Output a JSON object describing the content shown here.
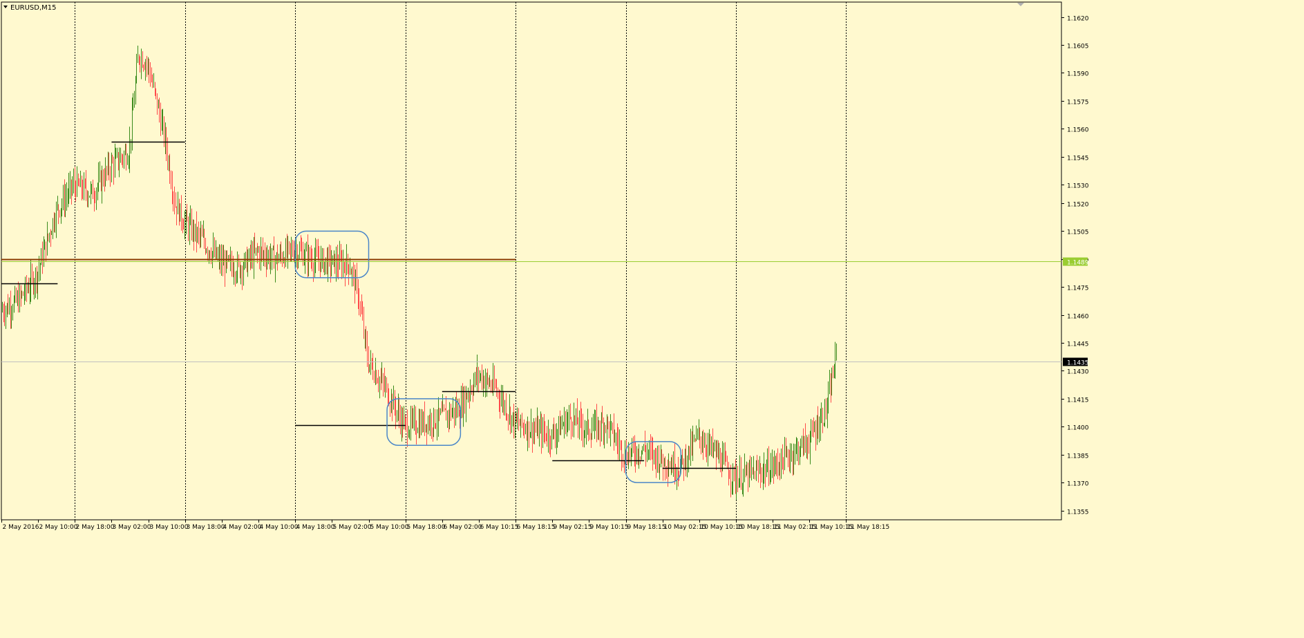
{
  "window": {
    "symbol_title": "EURUSD,M15",
    "title_icon": "triangle-down-icon"
  },
  "colors": {
    "background": "#fff9cf",
    "axis": "#000000",
    "bull": "#3a8a1a",
    "bear": "#ff4a4a",
    "level_line": "#000000",
    "pivot_line": "#8a3a00",
    "bid_line": "#9acd32",
    "ask_line": "#c0c0c0",
    "box": "#4a86c8"
  },
  "price_labels": {
    "bid": "1.1489",
    "current": "1.1435"
  },
  "chart_data": {
    "type": "candlestick",
    "title": "EURUSD,M15",
    "xlabel": "",
    "ylabel": "",
    "ylim": [
      1.135,
      1.1628
    ],
    "y_ticks": [
      "1.1620",
      "1.1605",
      "1.1590",
      "1.1575",
      "1.1560",
      "1.1545",
      "1.1530",
      "1.1520",
      "1.1505",
      "1.1490",
      "1.1475",
      "1.1460",
      "1.1445",
      "1.1430",
      "1.1415",
      "1.1400",
      "1.1385",
      "1.1370",
      "1.1355"
    ],
    "x_ticks": [
      "2 May 2016",
      "2 May 10:00",
      "2 May 18:00",
      "3 May 02:00",
      "3 May 10:00",
      "3 May 18:00",
      "4 May 02:00",
      "4 May 10:00",
      "4 May 18:00",
      "5 May 02:00",
      "5 May 10:00",
      "5 May 18:00",
      "6 May 02:00",
      "6 May 10:15",
      "6 May 18:15",
      "9 May 02:15",
      "9 May 10:15",
      "9 May 18:15",
      "10 May 02:15",
      "10 May 10:15",
      "10 May 18:15",
      "11 May 02:15",
      "11 May 10:15",
      "11 May 18:15"
    ],
    "x_span": [
      "2 May 2016",
      "11 May 18:15 + 8 bars"
    ],
    "day_separators": [
      "2 May 18:00",
      "3 May 18:00",
      "4 May 18:00",
      "5 May 18:00",
      "6 May 18:15",
      "9 May 18:15",
      "10 May 18:15",
      "11 May 18:15"
    ],
    "grid": false,
    "price_path": [
      {
        "t": "2 May 2016",
        "p": 1.1462
      },
      {
        "t": "2 May 06:00",
        "p": 1.1468
      },
      {
        "t": "2 May 10:00",
        "p": 1.1482
      },
      {
        "t": "2 May 14:00",
        "p": 1.1515
      },
      {
        "t": "2 May 18:00",
        "p": 1.153
      },
      {
        "t": "2 May 22:00",
        "p": 1.1525
      },
      {
        "t": "3 May 02:00",
        "p": 1.154
      },
      {
        "t": "3 May 06:00",
        "p": 1.1548
      },
      {
        "t": "3 May 08:00",
        "p": 1.16
      },
      {
        "t": "3 May 10:00",
        "p": 1.1595
      },
      {
        "t": "3 May 12:00",
        "p": 1.1575
      },
      {
        "t": "3 May 14:00",
        "p": 1.1552
      },
      {
        "t": "3 May 16:00",
        "p": 1.152
      },
      {
        "t": "3 May 18:00",
        "p": 1.151
      },
      {
        "t": "3 May 22:00",
        "p": 1.15
      },
      {
        "t": "4 May 02:00",
        "p": 1.1488
      },
      {
        "t": "4 May 06:00",
        "p": 1.1485
      },
      {
        "t": "4 May 10:00",
        "p": 1.1494
      },
      {
        "t": "4 May 14:00",
        "p": 1.149
      },
      {
        "t": "4 May 18:00",
        "p": 1.1495
      },
      {
        "t": "4 May 22:00",
        "p": 1.149
      },
      {
        "t": "5 May 02:00",
        "p": 1.1488
      },
      {
        "t": "5 May 06:00",
        "p": 1.1487
      },
      {
        "t": "5 May 08:00",
        "p": 1.147
      },
      {
        "t": "5 May 10:00",
        "p": 1.1435
      },
      {
        "t": "5 May 14:00",
        "p": 1.142
      },
      {
        "t": "5 May 18:00",
        "p": 1.14
      },
      {
        "t": "5 May 22:00",
        "p": 1.1402
      },
      {
        "t": "6 May 02:00",
        "p": 1.1405
      },
      {
        "t": "6 May 06:00",
        "p": 1.141
      },
      {
        "t": "6 May 10:15",
        "p": 1.1428
      },
      {
        "t": "6 May 14:15",
        "p": 1.142
      },
      {
        "t": "6 May 18:15",
        "p": 1.1402
      },
      {
        "t": "9 May 02:15",
        "p": 1.1395
      },
      {
        "t": "9 May 06:15",
        "p": 1.1405
      },
      {
        "t": "9 May 10:15",
        "p": 1.1398
      },
      {
        "t": "9 May 14:15",
        "p": 1.1402
      },
      {
        "t": "9 May 18:15",
        "p": 1.1385
      },
      {
        "t": "9 May 22:15",
        "p": 1.1388
      },
      {
        "t": "10 May 02:15",
        "p": 1.1382
      },
      {
        "t": "10 May 06:15",
        "p": 1.1378
      },
      {
        "t": "10 May 10:15",
        "p": 1.1395
      },
      {
        "t": "10 May 14:15",
        "p": 1.1385
      },
      {
        "t": "10 May 18:15",
        "p": 1.1372
      },
      {
        "t": "11 May 02:15",
        "p": 1.1378
      },
      {
        "t": "11 May 06:15",
        "p": 1.1385
      },
      {
        "t": "11 May 10:15",
        "p": 1.1392
      },
      {
        "t": "11 May 14:15",
        "p": 1.141
      },
      {
        "t": "11 May 16:15",
        "p": 1.1438
      }
    ],
    "annotations": {
      "horizontal_levels": [
        {
          "from": "2 May 2016",
          "to": "2 May 14:15",
          "price": 1.1477,
          "style": "level_line"
        },
        {
          "from": "3 May 02:00",
          "to": "3 May 18:00",
          "price": 1.1553,
          "style": "level_line"
        },
        {
          "from": "2 May 2016",
          "to": "6 May 18:15",
          "price": 1.149,
          "style": "pivot_line"
        },
        {
          "from": "4 May 18:00",
          "to": "5 May 18:00",
          "price": 1.1401,
          "style": "level_line"
        },
        {
          "from": "6 May 02:00",
          "to": "6 May 18:15",
          "price": 1.1419,
          "style": "level_line"
        },
        {
          "from": "9 May 02:15",
          "to": "9 May 22:15",
          "price": 1.1382,
          "style": "level_line"
        },
        {
          "from": "10 May 02:15",
          "to": "10 May 18:15",
          "price": 1.1378,
          "style": "level_line"
        }
      ],
      "range_boxes": [
        {
          "from": "4 May 18:00",
          "to": "5 May 10:00",
          "low": 1.148,
          "high": 1.1505
        },
        {
          "from": "5 May 14:00",
          "to": "6 May 06:00",
          "low": 1.139,
          "high": 1.1415
        },
        {
          "from": "9 May 18:15",
          "to": "10 May 06:15",
          "low": 1.137,
          "high": 1.1392
        }
      ]
    }
  }
}
